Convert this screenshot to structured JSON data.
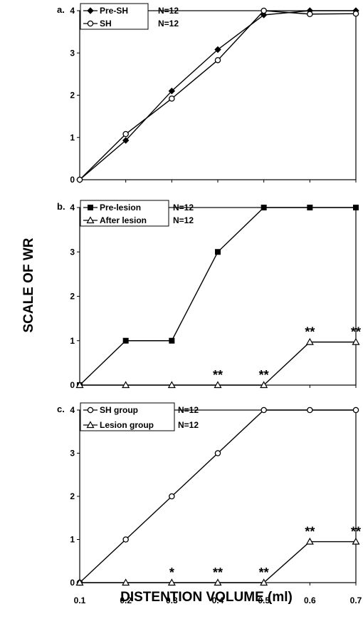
{
  "chart_data": [
    {
      "type": "line",
      "panel_label": "a.",
      "x": [
        0.1,
        0.2,
        0.3,
        0.4,
        0.5,
        0.6,
        0.7
      ],
      "ylim": [
        0,
        4
      ],
      "yticks": [
        0,
        1,
        2,
        3,
        4
      ],
      "series": [
        {
          "name": "Pre-SH",
          "marker": "filled-diamond",
          "values": [
            0,
            0.93,
            2.1,
            3.08,
            3.9,
            4.0,
            4.0
          ]
        },
        {
          "name": "SH",
          "marker": "open-circle",
          "values": [
            0,
            1.08,
            1.92,
            2.83,
            4.0,
            3.92,
            3.93
          ]
        }
      ],
      "legend": [
        {
          "label": "Pre-SH",
          "n": "N=12"
        },
        {
          "label": "SH",
          "n": "N=12"
        }
      ],
      "annotations": []
    },
    {
      "type": "line",
      "panel_label": "b.",
      "x": [
        0.1,
        0.2,
        0.3,
        0.4,
        0.5,
        0.6,
        0.7
      ],
      "ylim": [
        0,
        4
      ],
      "yticks": [
        0,
        1,
        2,
        3,
        4
      ],
      "series": [
        {
          "name": "Pre-lesion",
          "marker": "filled-square",
          "values": [
            0,
            1,
            1,
            3,
            4,
            4,
            4
          ]
        },
        {
          "name": "After lesion",
          "marker": "open-triangle",
          "values": [
            0,
            0,
            0,
            0,
            0,
            0.97,
            0.97
          ]
        }
      ],
      "legend": [
        {
          "label": "Pre-lesion",
          "n": "N=12"
        },
        {
          "label": "After lesion",
          "n": "N=12"
        }
      ],
      "annotations": [
        {
          "x": 0.4,
          "y": 0,
          "text": "**"
        },
        {
          "x": 0.5,
          "y": 0,
          "text": "**"
        },
        {
          "x": 0.6,
          "y": 0.97,
          "text": "**"
        },
        {
          "x": 0.7,
          "y": 0.97,
          "text": "**"
        }
      ]
    },
    {
      "type": "line",
      "panel_label": "c.",
      "x": [
        0.1,
        0.2,
        0.3,
        0.4,
        0.5,
        0.6,
        0.7
      ],
      "ylim": [
        0,
        4
      ],
      "yticks": [
        0,
        1,
        2,
        3,
        4
      ],
      "xtick_labels": [
        "0.1",
        "0.2",
        "0.3",
        "0.4",
        "0.5",
        "0.6",
        "0.7"
      ],
      "series": [
        {
          "name": "SH group",
          "marker": "open-circle",
          "values": [
            0,
            1,
            2,
            3,
            4,
            4,
            4
          ]
        },
        {
          "name": "Lesion group",
          "marker": "open-triangle",
          "values": [
            0,
            0,
            0,
            0,
            0,
            0.95,
            0.95
          ]
        }
      ],
      "legend": [
        {
          "label": "SH group",
          "n": "N=12"
        },
        {
          "label": "Lesion group",
          "n": "N=12"
        }
      ],
      "annotations": [
        {
          "x": 0.3,
          "y": 0,
          "text": "*"
        },
        {
          "x": 0.4,
          "y": 0,
          "text": "**"
        },
        {
          "x": 0.5,
          "y": 0,
          "text": "**"
        },
        {
          "x": 0.6,
          "y": 0.95,
          "text": "**"
        },
        {
          "x": 0.7,
          "y": 0.95,
          "text": "**"
        }
      ]
    }
  ],
  "ylabel": "SCALE OF WR",
  "xlabel": "DISTENTION VOLUME (ml)"
}
